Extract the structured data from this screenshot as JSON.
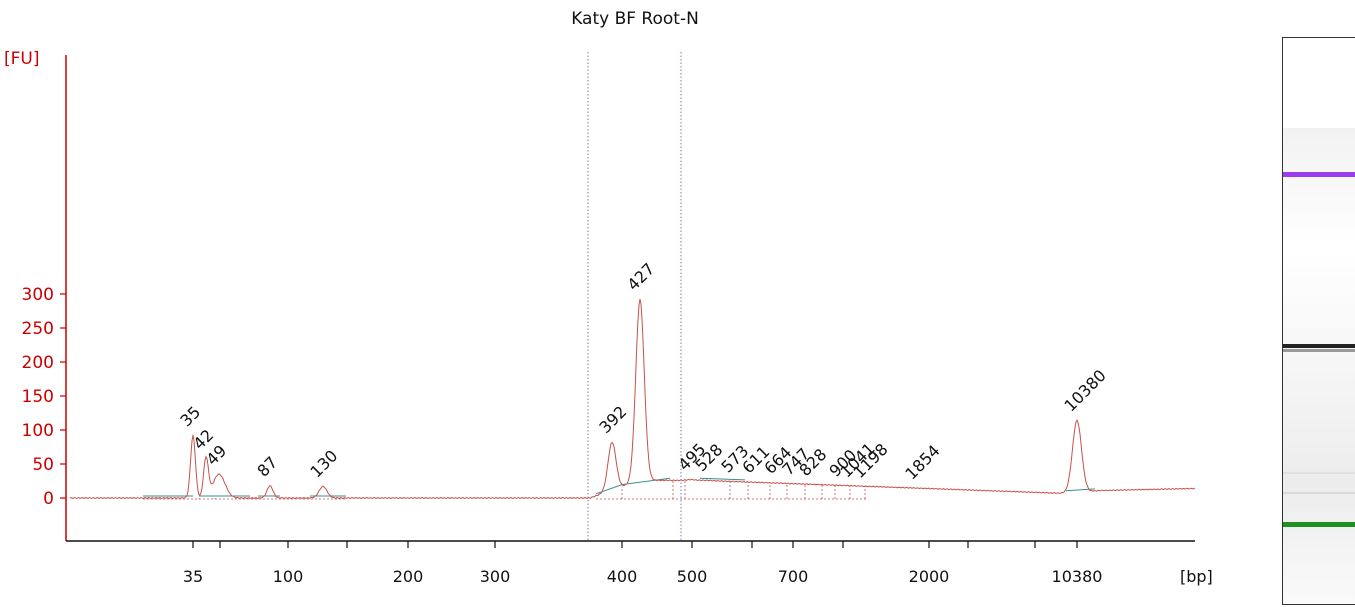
{
  "chart_data": {
    "type": "line",
    "title": "Katy BF Root-N",
    "ylabel": "[FU]",
    "xlabel": "[bp]",
    "ylim": [
      -30,
      320
    ],
    "yticks": [
      0,
      50,
      100,
      150,
      200,
      250,
      300
    ],
    "xticks": [
      "35",
      "100",
      "200",
      "300",
      "400",
      "500",
      "700",
      "2000",
      "10380"
    ],
    "colors": {
      "trace": "#c8504a",
      "axis": "#cc0000",
      "marker_lower": "#2e8b2e",
      "marker_upper": "#9b3cf0",
      "baseline": "#3a8f8f"
    },
    "peaks": [
      {
        "label": "35",
        "fu": 92,
        "kind": "marker_lower"
      },
      {
        "label": "42",
        "fu": 58
      },
      {
        "label": "49",
        "fu": 35
      },
      {
        "label": "87",
        "fu": 18
      },
      {
        "label": "130",
        "fu": 17
      },
      {
        "label": "392",
        "fu": 82
      },
      {
        "label": "427",
        "fu": 292
      },
      {
        "label": "495",
        "fu": 27
      },
      {
        "label": "528",
        "fu": 26
      },
      {
        "label": "573",
        "fu": 24
      },
      {
        "label": "611",
        "fu": 23
      },
      {
        "label": "664",
        "fu": 22
      },
      {
        "label": "747",
        "fu": 20
      },
      {
        "label": "828",
        "fu": 19
      },
      {
        "label": "900",
        "fu": 18
      },
      {
        "label": "1041",
        "fu": 17
      },
      {
        "label": "1198",
        "fu": 16
      },
      {
        "label": "1854",
        "fu": 14
      },
      {
        "label": "10380",
        "fu": 114,
        "kind": "marker_upper"
      }
    ]
  }
}
